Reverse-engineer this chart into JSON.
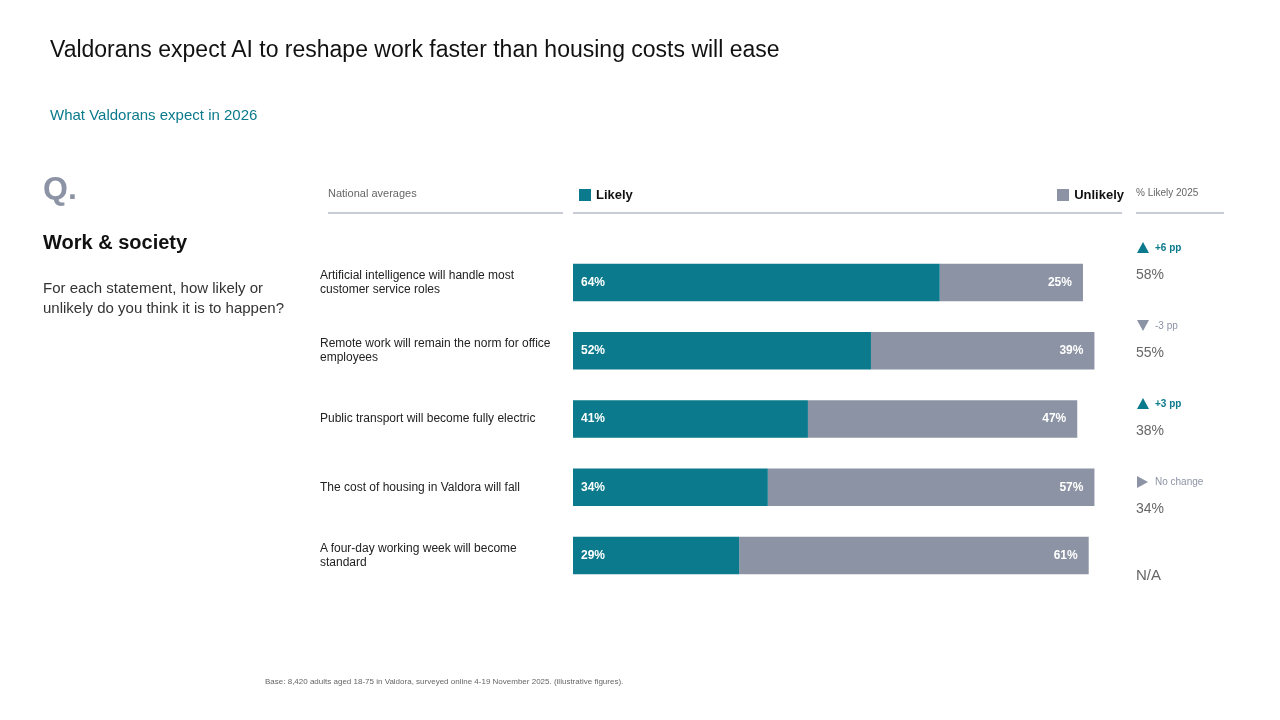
{
  "chart_data": {
    "type": "bar",
    "orientation": "horizontal",
    "stacked": true,
    "title": "Valdorans expect AI to reshape work faster than housing costs will ease",
    "subtitle": "What Valdorans expect in 2026",
    "categories": [
      "Artificial intelligence will handle most customer service roles",
      "Remote work will remain the norm for office employees",
      "Public transport will become fully electric",
      "The cost of housing in Valdora will fall",
      "A four-day working week will become standard"
    ],
    "series": [
      {
        "name": "Likely",
        "color": "#0a7a8c",
        "values": [
          64,
          52,
          41,
          34,
          29
        ],
        "value_labels": [
          "64%",
          "52%",
          "41%",
          "34%",
          "29%"
        ]
      },
      {
        "name": "Unlikely",
        "color": "#8c93a4",
        "values": [
          25,
          39,
          47,
          57,
          61
        ],
        "value_labels": [
          "25%",
          "39%",
          "47%",
          "57%",
          "61%"
        ]
      }
    ],
    "legend": "top",
    "annotations": [
      "Q.",
      "Work & society",
      "For each statement, how likely or unlikely do you think it is to happen?",
      "National averages",
      "% Likely 2025",
      "+6 pp",
      "58%",
      "-3 pp",
      "55%",
      "+3 pp",
      "38%",
      "No change",
      "34%",
      "N/A",
      "Base: 8,420 adults aged 18-75 in Valdora, surveyed online 4-19 November 2025. (illustrative figures)."
    ]
  }
}
